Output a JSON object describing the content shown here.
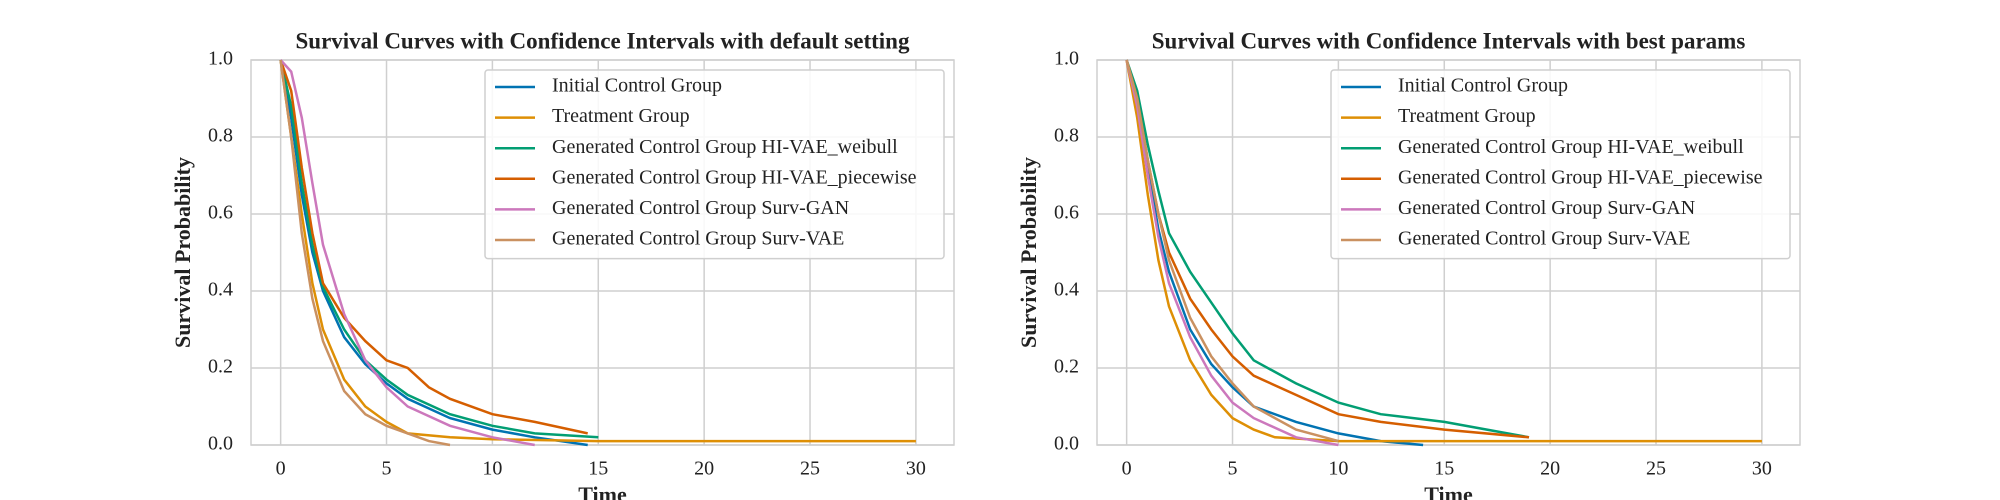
{
  "chart_data": [
    {
      "type": "line",
      "title": "Survival Curves with Confidence Intervals with default setting",
      "x_label": "Time",
      "y_label": "Survival Probability",
      "xlim": [
        -1.4,
        31.8
      ],
      "ylim": [
        0,
        1
      ],
      "xticks": [
        0,
        5,
        10,
        15,
        20,
        25,
        30
      ],
      "yticks": [
        {
          "value": 0,
          "label": "0.0"
        },
        0.2,
        0.4,
        0.6,
        0.8,
        {
          "value": 1,
          "label": "1.0"
        }
      ],
      "grid": true,
      "legend": "upper right",
      "series": [
        {
          "name": "Initial Control Group",
          "color": "#0173b2",
          "x": [
            0,
            0.5,
            1,
            1.5,
            2,
            3,
            4,
            5,
            6,
            8,
            10,
            12,
            14.5
          ],
          "values": [
            1,
            0.85,
            0.65,
            0.5,
            0.4,
            0.28,
            0.21,
            0.16,
            0.12,
            0.07,
            0.04,
            0.02,
            0
          ]
        },
        {
          "name": "Treatment Group",
          "color": "#de8f05",
          "x": [
            0,
            0.5,
            1,
            1.5,
            2,
            3,
            4,
            5,
            6,
            8,
            10,
            15,
            20,
            30
          ],
          "values": [
            1,
            0.8,
            0.6,
            0.42,
            0.3,
            0.17,
            0.1,
            0.06,
            0.03,
            0.02,
            0.015,
            0.01,
            0.01,
            0.01
          ]
        },
        {
          "name": "Generated Control Group HI-VAE_weibull",
          "color": "#029e73",
          "x": [
            0,
            0.5,
            1,
            1.5,
            2,
            3,
            4,
            5,
            6,
            8,
            10,
            12,
            15
          ],
          "values": [
            1,
            0.88,
            0.68,
            0.52,
            0.41,
            0.3,
            0.22,
            0.17,
            0.13,
            0.08,
            0.05,
            0.03,
            0.02
          ]
        },
        {
          "name": "Generated Control Group HI-VAE_piecewise",
          "color": "#d55e00",
          "x": [
            0,
            0.5,
            1,
            1.5,
            2,
            3,
            4,
            5,
            6,
            7,
            8,
            10,
            12,
            14.5
          ],
          "values": [
            1,
            0.92,
            0.72,
            0.55,
            0.42,
            0.33,
            0.27,
            0.22,
            0.2,
            0.15,
            0.12,
            0.08,
            0.06,
            0.03
          ]
        },
        {
          "name": "Generated Control Group Surv-GAN",
          "color": "#cc78bc",
          "x": [
            0,
            0.5,
            1,
            1.5,
            2,
            3,
            4,
            5,
            6,
            8,
            10,
            12
          ],
          "values": [
            1,
            0.97,
            0.85,
            0.68,
            0.52,
            0.34,
            0.22,
            0.15,
            0.1,
            0.05,
            0.02,
            0
          ]
        },
        {
          "name": "Generated Control Group Surv-VAE",
          "color": "#ca9161",
          "x": [
            0,
            0.5,
            1,
            1.5,
            2,
            3,
            4,
            5,
            6,
            7,
            8
          ],
          "values": [
            1,
            0.8,
            0.55,
            0.38,
            0.27,
            0.14,
            0.08,
            0.05,
            0.03,
            0.01,
            0
          ]
        }
      ]
    },
    {
      "type": "line",
      "title": "Survival Curves with Confidence Intervals with best params",
      "x_label": "Time",
      "y_label": "Survival Probability",
      "xlim": [
        -1.4,
        31.8
      ],
      "ylim": [
        0,
        1
      ],
      "xticks": [
        0,
        5,
        10,
        15,
        20,
        25,
        30
      ],
      "yticks": [
        {
          "value": 0,
          "label": "0.0"
        },
        0.2,
        0.4,
        0.6,
        0.8,
        {
          "value": 1,
          "label": "1.0"
        }
      ],
      "grid": true,
      "legend": "upper right",
      "series": [
        {
          "name": "Initial Control Group",
          "color": "#0173b2",
          "x": [
            0,
            0.5,
            1,
            1.5,
            2,
            3,
            4,
            5,
            6,
            8,
            10,
            12,
            14
          ],
          "values": [
            1,
            0.9,
            0.72,
            0.56,
            0.45,
            0.3,
            0.21,
            0.15,
            0.1,
            0.06,
            0.03,
            0.01,
            0
          ]
        },
        {
          "name": "Treatment Group",
          "color": "#de8f05",
          "x": [
            0,
            0.5,
            1,
            1.5,
            2,
            3,
            4,
            5,
            6,
            7,
            10,
            20,
            30
          ],
          "values": [
            1,
            0.85,
            0.65,
            0.48,
            0.36,
            0.22,
            0.13,
            0.07,
            0.04,
            0.02,
            0.01,
            0.01,
            0.01
          ]
        },
        {
          "name": "Generated Control Group HI-VAE_weibull",
          "color": "#029e73",
          "x": [
            0,
            0.5,
            1,
            1.5,
            2,
            3,
            4,
            5,
            6,
            7,
            8,
            10,
            12,
            15,
            19
          ],
          "values": [
            1,
            0.92,
            0.78,
            0.66,
            0.55,
            0.45,
            0.37,
            0.29,
            0.22,
            0.19,
            0.16,
            0.11,
            0.08,
            0.06,
            0.02
          ]
        },
        {
          "name": "Generated Control Group HI-VAE_piecewise",
          "color": "#d55e00",
          "x": [
            0,
            0.5,
            1,
            1.5,
            2,
            3,
            4,
            5,
            6,
            8,
            10,
            12,
            15,
            19
          ],
          "values": [
            1,
            0.9,
            0.74,
            0.6,
            0.5,
            0.38,
            0.3,
            0.23,
            0.18,
            0.13,
            0.08,
            0.06,
            0.04,
            0.02
          ]
        },
        {
          "name": "Generated Control Group Surv-GAN",
          "color": "#cc78bc",
          "x": [
            0,
            0.5,
            1,
            1.5,
            2,
            3,
            4,
            5,
            6,
            8,
            10
          ],
          "values": [
            1,
            0.88,
            0.7,
            0.54,
            0.42,
            0.28,
            0.18,
            0.11,
            0.07,
            0.02,
            0
          ]
        },
        {
          "name": "Generated Control Group Surv-VAE",
          "color": "#ca9161",
          "x": [
            0,
            0.5,
            1,
            1.5,
            2,
            3,
            4,
            5,
            6,
            8,
            10
          ],
          "values": [
            1,
            0.9,
            0.74,
            0.6,
            0.48,
            0.33,
            0.23,
            0.16,
            0.1,
            0.04,
            0.01
          ]
        }
      ]
    }
  ]
}
